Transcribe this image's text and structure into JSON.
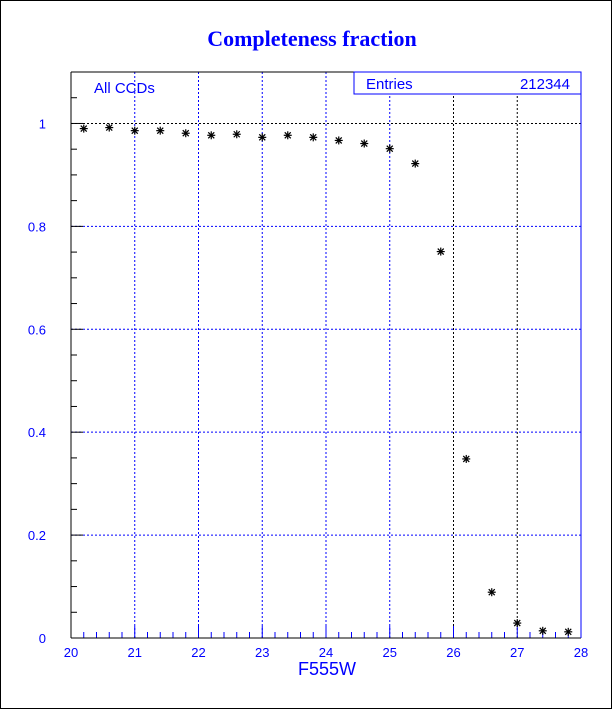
{
  "chart_data": {
    "type": "scatter",
    "title": "Completeness fraction",
    "xlabel": "F555W",
    "ylabel": "",
    "annotation": "All CCDs",
    "stats": {
      "label": "Entries",
      "value": "212344"
    },
    "xlim": [
      20,
      28
    ],
    "ylim": [
      0,
      1.1
    ],
    "x_ticks": [
      "20",
      "21",
      "22",
      "23",
      "24",
      "25",
      "26",
      "27",
      "28"
    ],
    "y_ticks": [
      "0",
      "0.2",
      "0.4",
      "0.6",
      "0.8",
      "1"
    ],
    "grid": true,
    "marker": "asterisk",
    "colors": {
      "text": "#0000ff",
      "grid": "#0000ff",
      "marker": "#000000"
    },
    "x": [
      20.2,
      20.6,
      21.0,
      21.4,
      21.8,
      22.2,
      22.6,
      23.0,
      23.4,
      23.8,
      24.2,
      24.6,
      25.0,
      25.4,
      25.8,
      26.2,
      26.6,
      27.0,
      27.4,
      27.8
    ],
    "y": [
      0.99,
      0.992,
      0.986,
      0.986,
      0.981,
      0.977,
      0.979,
      0.973,
      0.977,
      0.973,
      0.967,
      0.961,
      0.951,
      0.922,
      0.751,
      0.348,
      0.089,
      0.029,
      0.014,
      0.012
    ]
  }
}
